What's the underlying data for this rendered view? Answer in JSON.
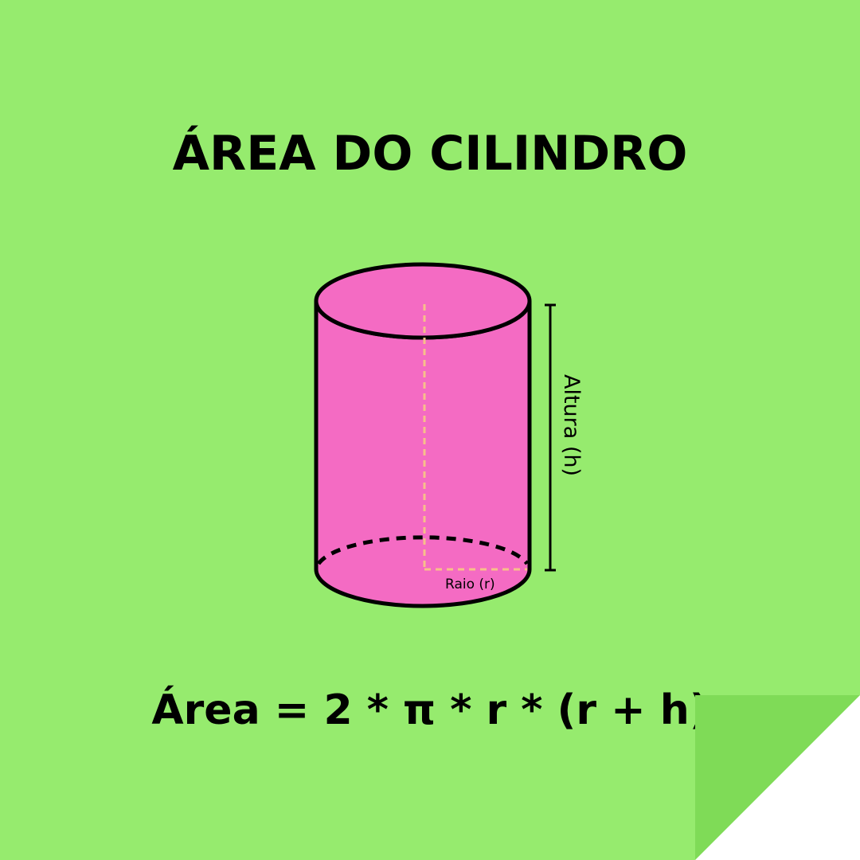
{
  "title": "ÁREA DO CILINDRO",
  "labels": {
    "height": "Altura (h)",
    "radius": "Raio (r)"
  },
  "formula": "Área = 2 * π * r * (r + h)",
  "colors": {
    "background": "#96eb6e",
    "cylinder_fill": "#f46bc3",
    "radius_line": "#f7c08a",
    "fold": "#7fdb57"
  }
}
